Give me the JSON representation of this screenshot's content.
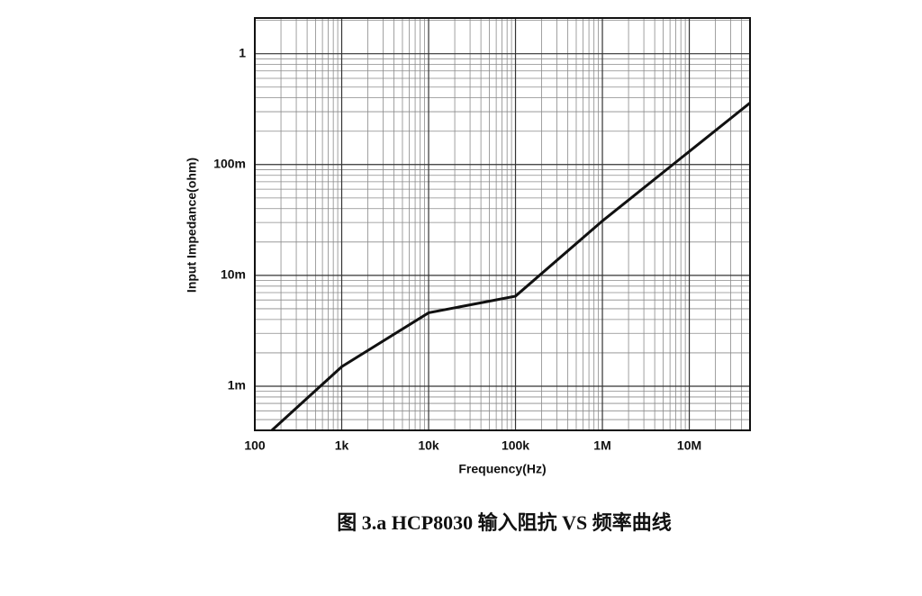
{
  "chart_data": {
    "type": "line",
    "xlabel": "Frequency(Hz)",
    "ylabel": "Input Impedance(ohm)",
    "caption": "图 3.a HCP8030 输入阻抗 VS 频率曲线",
    "xscale": "log",
    "yscale": "log",
    "grid": true,
    "minor_grid": true,
    "xlim": [
      100,
      50000000
    ],
    "xticks": [
      100,
      {
        "value": 1000,
        "label": "1k"
      },
      {
        "value": 10000,
        "label": "10k"
      },
      {
        "value": 100000,
        "label": "100k"
      },
      {
        "value": 1000000,
        "label": "1M"
      },
      {
        "value": 10000000,
        "label": "10M"
      }
    ],
    "ylim": [
      0.0004,
      2.1
    ],
    "yticks": [
      {
        "value": 0.001,
        "label": "1m"
      },
      {
        "value": 0.01,
        "label": "10m"
      },
      {
        "value": 0.1,
        "label": "100m"
      },
      1
    ],
    "series": [
      {
        "color": "#111111",
        "x": [
          157,
          1000,
          10000,
          100000,
          1000000,
          50000000
        ],
        "values": [
          0.0004,
          0.0015,
          0.0046,
          0.0065,
          0.031,
          0.36
        ]
      }
    ]
  }
}
